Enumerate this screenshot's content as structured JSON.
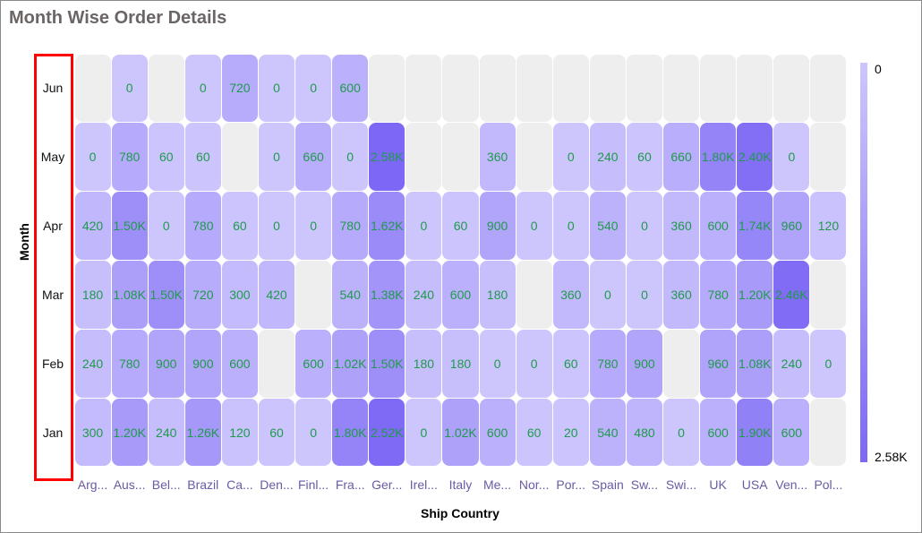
{
  "chart_data": {
    "type": "heatmap",
    "title": "Month Wise Order Details",
    "xlabel": "Ship Country",
    "ylabel": "Month",
    "x_labels": [
      "Arg...",
      "Aus...",
      "Bel...",
      "Brazil",
      "Ca...",
      "Den...",
      "Finl...",
      "Fra...",
      "Ger...",
      "Irel...",
      "Italy",
      "Me...",
      "Nor...",
      "Por...",
      "Spain",
      "Sw...",
      "Swi...",
      "UK",
      "USA",
      "Ven...",
      "Pol..."
    ],
    "y_labels": [
      "Jun",
      "May",
      "Apr",
      "Mar",
      "Feb",
      "Jan"
    ],
    "values": [
      [
        null,
        0,
        null,
        0,
        720,
        0,
        0,
        600,
        null,
        null,
        null,
        null,
        null,
        null,
        null,
        null,
        null,
        null,
        null,
        null,
        null
      ],
      [
        0,
        780,
        60,
        60,
        null,
        0,
        660,
        0,
        2580,
        null,
        null,
        360,
        null,
        0,
        240,
        60,
        660,
        1800,
        2400,
        0,
        null
      ],
      [
        420,
        1500,
        0,
        780,
        60,
        0,
        0,
        780,
        1620,
        0,
        60,
        900,
        0,
        0,
        540,
        0,
        360,
        600,
        1740,
        960,
        120
      ],
      [
        180,
        1080,
        1500,
        720,
        300,
        420,
        null,
        540,
        1380,
        240,
        600,
        180,
        null,
        360,
        0,
        0,
        360,
        780,
        1200,
        2460,
        null
      ],
      [
        240,
        780,
        900,
        900,
        600,
        null,
        600,
        1020,
        1500,
        180,
        180,
        0,
        0,
        60,
        780,
        900,
        null,
        960,
        1080,
        240,
        0
      ],
      [
        300,
        1200,
        240,
        1260,
        120,
        60,
        0,
        1800,
        2520,
        0,
        1020,
        600,
        60,
        20,
        540,
        480,
        0,
        600,
        1900,
        600,
        null
      ]
    ],
    "legend": {
      "min_label": "0",
      "max_label": "2.58K",
      "min": 0,
      "max": 2580,
      "placement": "right"
    },
    "colors": {
      "low": "#cdc6fd",
      "high": "#7c68f5",
      "empty": "#eeeeee",
      "label": "#1f9a4c",
      "axis_label": "#6a5aa5",
      "highlight": "#ff0000"
    }
  }
}
